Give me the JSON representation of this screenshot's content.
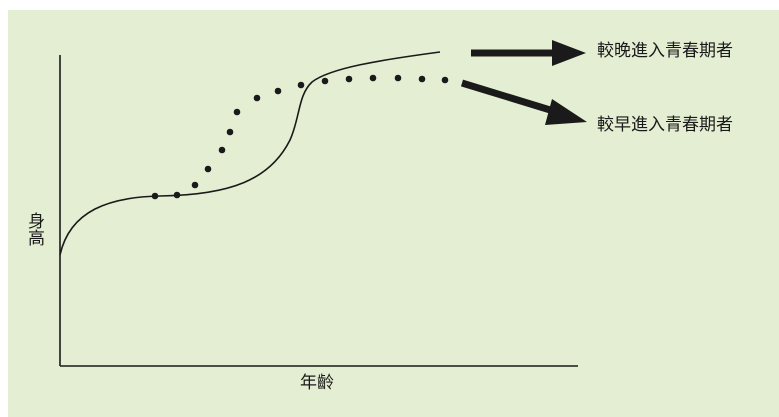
{
  "diagram": {
    "y_axis_label": "身高",
    "x_axis_label": "年齡",
    "legend_late": "較晚進入青春期者",
    "legend_early": "較早進入青春期者",
    "colors": {
      "background": "#e4eed3",
      "ink": "#1a1a1a"
    },
    "curves": {
      "late_style": "solid line",
      "early_style": "dotted line"
    },
    "arrows": [
      "arrow-icon",
      "arrow-icon"
    ]
  }
}
